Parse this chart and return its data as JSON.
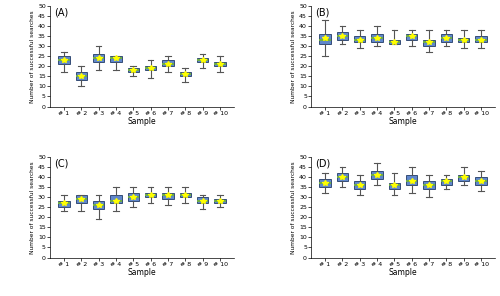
{
  "panels": [
    "A",
    "B",
    "C",
    "D"
  ],
  "xlabel": "Sample",
  "ylabel": "Number of successful searches",
  "x_labels": [
    "# 1",
    "# 2",
    "# 3",
    "# 4",
    "# 5",
    "# 6",
    "# 7",
    "# 8",
    "# 9",
    "# 10"
  ],
  "ylim": [
    0,
    50
  ],
  "yticks": [
    0,
    5,
    10,
    15,
    20,
    25,
    30,
    35,
    40,
    45,
    50
  ],
  "box_facecolor": "#4472c4",
  "box_edgecolor": "#1f3864",
  "whisker_color": "#555555",
  "median_color": "#70ad47",
  "mean_color": "#ffff00",
  "A": {
    "medians": [
      23,
      15,
      24,
      24,
      18,
      19,
      21,
      16,
      23,
      21
    ],
    "q1": [
      21,
      13,
      22,
      22,
      17,
      18,
      20,
      15,
      22,
      20
    ],
    "q3": [
      25,
      17,
      26,
      25,
      19,
      20,
      23,
      17,
      24,
      22
    ],
    "whislo": [
      17,
      10,
      18,
      18,
      15,
      14,
      17,
      12,
      19,
      17
    ],
    "whishi": [
      27,
      20,
      30,
      25,
      20,
      23,
      25,
      19,
      26,
      25
    ],
    "means": [
      23,
      15,
      24,
      24,
      18,
      19,
      21,
      16,
      23,
      21
    ]
  },
  "B": {
    "medians": [
      33,
      35,
      33,
      34,
      32,
      35,
      32,
      34,
      33,
      33
    ],
    "q1": [
      31,
      33,
      32,
      32,
      31,
      33,
      30,
      32,
      32,
      32
    ],
    "q3": [
      36,
      37,
      35,
      36,
      33,
      36,
      33,
      36,
      34,
      35
    ],
    "whislo": [
      25,
      31,
      29,
      30,
      31,
      30,
      27,
      30,
      29,
      29
    ],
    "whishi": [
      43,
      40,
      38,
      40,
      38,
      38,
      38,
      38,
      38,
      38
    ],
    "means": [
      34,
      35,
      33,
      34,
      32,
      35,
      32,
      34,
      33,
      33
    ]
  },
  "C": {
    "medians": [
      27,
      29,
      26,
      28,
      30,
      31,
      31,
      31,
      28,
      28
    ],
    "q1": [
      25,
      27,
      24,
      27,
      28,
      30,
      29,
      30,
      27,
      27
    ],
    "q3": [
      28,
      31,
      28,
      31,
      32,
      32,
      32,
      32,
      30,
      29
    ],
    "whislo": [
      23,
      23,
      19,
      23,
      25,
      27,
      26,
      27,
      24,
      25
    ],
    "whishi": [
      31,
      31,
      31,
      35,
      35,
      35,
      35,
      35,
      31,
      31
    ],
    "means": [
      27,
      29,
      26,
      28,
      30,
      31,
      31,
      31,
      28,
      28
    ]
  },
  "D": {
    "medians": [
      37,
      40,
      36,
      41,
      36,
      38,
      36,
      38,
      40,
      38
    ],
    "q1": [
      35,
      38,
      34,
      39,
      34,
      36,
      34,
      36,
      38,
      36
    ],
    "q3": [
      39,
      42,
      38,
      43,
      37,
      41,
      38,
      39,
      41,
      40
    ],
    "whislo": [
      32,
      35,
      31,
      36,
      31,
      32,
      30,
      34,
      36,
      33
    ],
    "whishi": [
      42,
      45,
      41,
      47,
      42,
      45,
      41,
      41,
      45,
      43
    ],
    "means": [
      37,
      40,
      36,
      41,
      36,
      38,
      36,
      38,
      40,
      38
    ]
  }
}
